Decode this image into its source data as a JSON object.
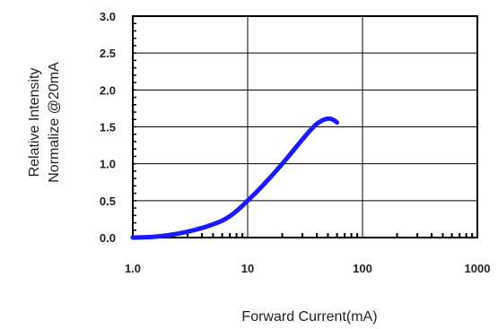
{
  "chart_data": {
    "type": "line",
    "title": "",
    "xlabel": "Forward Current(mA)",
    "ylabel": [
      "Relative Intensity",
      "Normalize @20mA"
    ],
    "x_scale": "log",
    "xlim": [
      1,
      1000
    ],
    "ylim": [
      0,
      3
    ],
    "x_ticks": [
      1,
      10,
      100,
      1000
    ],
    "x_tick_labels": [
      "1.0",
      "10",
      "100",
      "1000"
    ],
    "y_ticks": [
      0,
      0.5,
      1,
      1.5,
      2,
      2.5,
      3
    ],
    "y_tick_labels": [
      "0.0",
      "0.5",
      "1.0",
      "1.5",
      "2.0",
      "2.5",
      "3.0"
    ],
    "grid": true,
    "line_color": "#1a1aff",
    "series": [
      {
        "x": [
          1,
          1.5,
          2,
          3,
          4,
          5,
          6,
          7,
          8,
          9,
          10,
          12,
          15,
          20,
          25,
          30,
          35,
          40,
          45,
          50,
          55,
          60
        ],
        "y": [
          0,
          0.01,
          0.03,
          0.08,
          0.13,
          0.18,
          0.23,
          0.29,
          0.36,
          0.43,
          0.5,
          0.62,
          0.78,
          1.0,
          1.18,
          1.33,
          1.45,
          1.54,
          1.59,
          1.61,
          1.6,
          1.56
        ]
      }
    ]
  }
}
